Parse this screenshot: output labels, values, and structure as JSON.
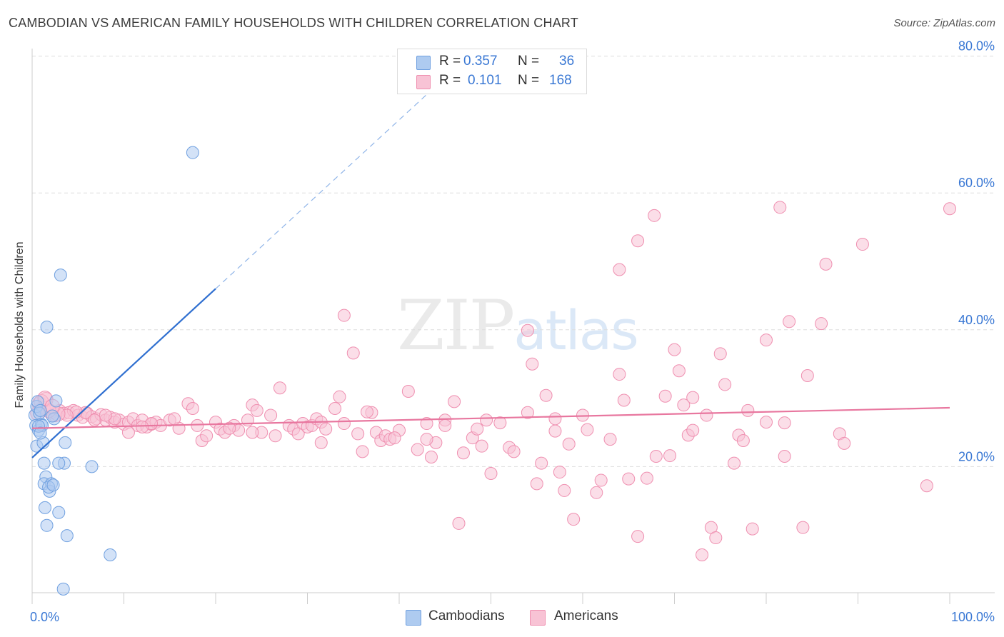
{
  "title": "CAMBODIAN VS AMERICAN FAMILY HOUSEHOLDS WITH CHILDREN CORRELATION CHART",
  "source": "Source: ZipAtlas.com",
  "watermark": {
    "zip": "ZIP",
    "atlas": "atlas"
  },
  "stats": [
    {
      "r_label": "R =",
      "r_value": "0.357",
      "n_label": "N =",
      "n_value": "36",
      "color": "#aecbf0",
      "border": "#6fa0e0"
    },
    {
      "r_label": "R =",
      "r_value": "0.101",
      "n_label": "N =",
      "n_value": "168",
      "color": "#f8c3d5",
      "border": "#ef8fb0"
    }
  ],
  "legend": [
    {
      "label": "Cambodians",
      "color": "#aecbf0",
      "border": "#6fa0e0"
    },
    {
      "label": "Americans",
      "color": "#f8c3d5",
      "border": "#ef8fb0"
    }
  ],
  "chart_data": {
    "type": "scatter",
    "title": "CAMBODIAN VS AMERICAN FAMILY HOUSEHOLDS WITH CHILDREN CORRELATION CHART",
    "xlabel": "",
    "ylabel": "Family Households with Children",
    "xlim": [
      0,
      100
    ],
    "ylim": [
      0,
      82
    ],
    "x_tick_labels": [
      {
        "value": 0,
        "label": "0.0%"
      },
      {
        "value": 100,
        "label": "100.0%"
      }
    ],
    "y_tick_labels": [
      {
        "value": 20,
        "label": "20.0%"
      },
      {
        "value": 40,
        "label": "40.0%"
      },
      {
        "value": 60,
        "label": "60.0%"
      },
      {
        "value": 80,
        "label": "80.0%"
      }
    ],
    "series": [
      {
        "name": "Cambodians",
        "color": "#aecbf0",
        "stroke": "#6fa0e0",
        "trend_color": "#2f6fd0",
        "trend": {
          "x0": 0,
          "y0": 21.3,
          "x1": 20,
          "y1": 46.0,
          "dash_to_x": 43.5,
          "dash_to_y": 75.0
        },
        "points": [
          [
            0.3,
            27.5
          ],
          [
            0.5,
            28.8
          ],
          [
            0.6,
            29.5
          ],
          [
            0.4,
            26.0
          ],
          [
            0.7,
            25.3
          ],
          [
            0.8,
            27.8
          ],
          [
            0.9,
            28.2
          ],
          [
            1.0,
            26.2
          ],
          [
            1.1,
            26.0
          ],
          [
            0.5,
            23.0
          ],
          [
            1.2,
            23.5
          ],
          [
            1.5,
            18.5
          ],
          [
            1.3,
            20.5
          ],
          [
            2.6,
            29.6
          ],
          [
            2.4,
            27.0
          ],
          [
            2.2,
            27.4
          ],
          [
            1.6,
            40.4
          ],
          [
            3.1,
            48.0
          ],
          [
            3.6,
            23.5
          ],
          [
            3.5,
            20.5
          ],
          [
            2.9,
            20.5
          ],
          [
            6.5,
            20.0
          ],
          [
            1.3,
            17.5
          ],
          [
            2.1,
            17.5
          ],
          [
            1.9,
            16.4
          ],
          [
            1.4,
            14.0
          ],
          [
            2.9,
            13.3
          ],
          [
            1.6,
            11.4
          ],
          [
            3.8,
            9.9
          ],
          [
            8.5,
            7.1
          ],
          [
            3.4,
            2.1
          ],
          [
            17.5,
            65.9
          ],
          [
            0.7,
            25.9
          ],
          [
            1.8,
            17.0
          ],
          [
            0.9,
            24.9
          ],
          [
            2.3,
            17.3
          ]
        ]
      },
      {
        "name": "Americans",
        "color": "#f8c3d5",
        "stroke": "#ef8fb0",
        "trend_color": "#e8779f",
        "trend": {
          "x0": 0,
          "y0": 25.6,
          "x1": 100,
          "y1": 28.6
        },
        "points": [
          [
            0.8,
            29.2
          ],
          [
            1.2,
            28.5
          ],
          [
            1.5,
            29.8
          ],
          [
            2.0,
            28.0
          ],
          [
            2.5,
            27.6
          ],
          [
            3.0,
            28.2
          ],
          [
            3.5,
            27.8
          ],
          [
            4.0,
            27.9
          ],
          [
            4.5,
            28.2
          ],
          [
            5.0,
            27.5
          ],
          [
            5.5,
            27.2
          ],
          [
            6.0,
            27.8
          ],
          [
            6.5,
            27.3
          ],
          [
            7.0,
            27.0
          ],
          [
            7.5,
            27.6
          ],
          [
            8.0,
            26.8
          ],
          [
            8.5,
            27.2
          ],
          [
            9.0,
            26.5
          ],
          [
            9.5,
            26.8
          ],
          [
            10.0,
            26.2
          ],
          [
            10.5,
            26.5
          ],
          [
            11.0,
            27.0
          ],
          [
            11.5,
            26.0
          ],
          [
            12.0,
            26.8
          ],
          [
            12.5,
            25.8
          ],
          [
            13.0,
            26.2
          ],
          [
            13.5,
            26.5
          ],
          [
            14.0,
            26.0
          ],
          [
            15.0,
            26.8
          ],
          [
            16.0,
            25.6
          ],
          [
            17.0,
            29.2
          ],
          [
            17.5,
            28.5
          ],
          [
            18.0,
            26.0
          ],
          [
            18.5,
            23.8
          ],
          [
            19.0,
            24.5
          ],
          [
            20.0,
            26.5
          ],
          [
            20.5,
            25.5
          ],
          [
            21.0,
            25.0
          ],
          [
            22.0,
            26.0
          ],
          [
            22.5,
            25.3
          ],
          [
            23.5,
            26.8
          ],
          [
            24.0,
            29.0
          ],
          [
            24.5,
            28.2
          ],
          [
            25.0,
            25.0
          ],
          [
            26.0,
            27.5
          ],
          [
            26.5,
            24.5
          ],
          [
            27.0,
            31.5
          ],
          [
            28.0,
            26.0
          ],
          [
            28.5,
            25.5
          ],
          [
            29.0,
            24.8
          ],
          [
            29.5,
            26.3
          ],
          [
            30.0,
            25.8
          ],
          [
            30.5,
            26.0
          ],
          [
            31.0,
            27.0
          ],
          [
            31.5,
            26.5
          ],
          [
            32.0,
            25.5
          ],
          [
            33.0,
            28.5
          ],
          [
            33.5,
            30.2
          ],
          [
            34.0,
            26.3
          ],
          [
            35.0,
            36.6
          ],
          [
            35.5,
            24.8
          ],
          [
            36.0,
            22.2
          ],
          [
            37.0,
            27.9
          ],
          [
            37.5,
            25.0
          ],
          [
            38.0,
            23.8
          ],
          [
            38.5,
            24.5
          ],
          [
            39.0,
            24.0
          ],
          [
            40.0,
            25.3
          ],
          [
            41.0,
            31.0
          ],
          [
            42.0,
            22.5
          ],
          [
            43.0,
            26.3
          ],
          [
            43.5,
            21.4
          ],
          [
            44.0,
            23.5
          ],
          [
            45.0,
            26.8
          ],
          [
            46.0,
            29.5
          ],
          [
            46.5,
            11.7
          ],
          [
            47.0,
            22.0
          ],
          [
            48.0,
            24.2
          ],
          [
            48.5,
            25.5
          ],
          [
            49.0,
            23.0
          ],
          [
            49.5,
            26.8
          ],
          [
            50.0,
            19.0
          ],
          [
            51.0,
            26.4
          ],
          [
            52.0,
            22.8
          ],
          [
            52.5,
            22.2
          ],
          [
            54.0,
            27.9
          ],
          [
            54.5,
            35.0
          ],
          [
            55.0,
            17.5
          ],
          [
            55.5,
            20.5
          ],
          [
            56.0,
            30.4
          ],
          [
            57.0,
            25.2
          ],
          [
            57.5,
            19.2
          ],
          [
            58.0,
            16.5
          ],
          [
            58.5,
            23.3
          ],
          [
            59.0,
            12.3
          ],
          [
            60.0,
            27.5
          ],
          [
            60.5,
            25.4
          ],
          [
            61.5,
            16.2
          ],
          [
            62.0,
            18.0
          ],
          [
            63.0,
            24.0
          ],
          [
            64.0,
            33.5
          ],
          [
            64.5,
            29.7
          ],
          [
            65.0,
            18.2
          ],
          [
            66.0,
            9.8
          ],
          [
            67.0,
            18.3
          ],
          [
            68.0,
            21.5
          ],
          [
            69.0,
            30.3
          ],
          [
            69.5,
            21.6
          ],
          [
            70.0,
            37.1
          ],
          [
            70.5,
            34.0
          ],
          [
            71.0,
            29.0
          ],
          [
            71.5,
            24.6
          ],
          [
            72.0,
            30.1
          ],
          [
            73.0,
            7.1
          ],
          [
            73.5,
            27.5
          ],
          [
            74.0,
            11.1
          ],
          [
            74.5,
            9.6
          ],
          [
            75.0,
            36.5
          ],
          [
            75.5,
            32.0
          ],
          [
            77.0,
            24.6
          ],
          [
            76.5,
            20.5
          ],
          [
            77.5,
            23.8
          ],
          [
            78.0,
            28.2
          ],
          [
            78.5,
            10.9
          ],
          [
            80.0,
            38.5
          ],
          [
            81.5,
            57.9
          ],
          [
            82.0,
            21.5
          ],
          [
            82.5,
            41.2
          ],
          [
            84.5,
            33.3
          ],
          [
            84.0,
            11.1
          ],
          [
            86.0,
            40.9
          ],
          [
            86.5,
            49.6
          ],
          [
            88.0,
            24.8
          ],
          [
            88.5,
            23.4
          ],
          [
            90.5,
            52.5
          ],
          [
            97.5,
            17.2
          ],
          [
            100.0,
            57.7
          ],
          [
            67.8,
            56.7
          ],
          [
            66.0,
            53.0
          ],
          [
            64.0,
            48.8
          ],
          [
            34.0,
            42.1
          ],
          [
            54.0,
            39.9
          ],
          [
            82.0,
            26.4
          ],
          [
            72.0,
            25.3
          ],
          [
            80.0,
            26.5
          ],
          [
            31.5,
            23.5
          ],
          [
            45.0,
            26.0
          ],
          [
            57.0,
            27.0
          ],
          [
            43.0,
            24.0
          ],
          [
            36.5,
            28.0
          ],
          [
            39.5,
            24.2
          ],
          [
            24.0,
            25.0
          ],
          [
            21.5,
            25.6
          ],
          [
            15.5,
            27.0
          ],
          [
            13.0,
            26.3
          ],
          [
            12.0,
            25.8
          ],
          [
            10.5,
            25.0
          ],
          [
            9.0,
            27.0
          ],
          [
            8.0,
            27.5
          ],
          [
            6.8,
            26.8
          ],
          [
            5.8,
            27.9
          ],
          [
            4.8,
            28.0
          ],
          [
            3.8,
            27.5
          ],
          [
            2.8,
            27.7
          ],
          [
            1.8,
            28.2
          ],
          [
            1.0,
            29.5
          ],
          [
            1.4,
            30.0
          ],
          [
            2.2,
            28.8
          ],
          [
            0.6,
            27.8
          ]
        ]
      }
    ]
  }
}
